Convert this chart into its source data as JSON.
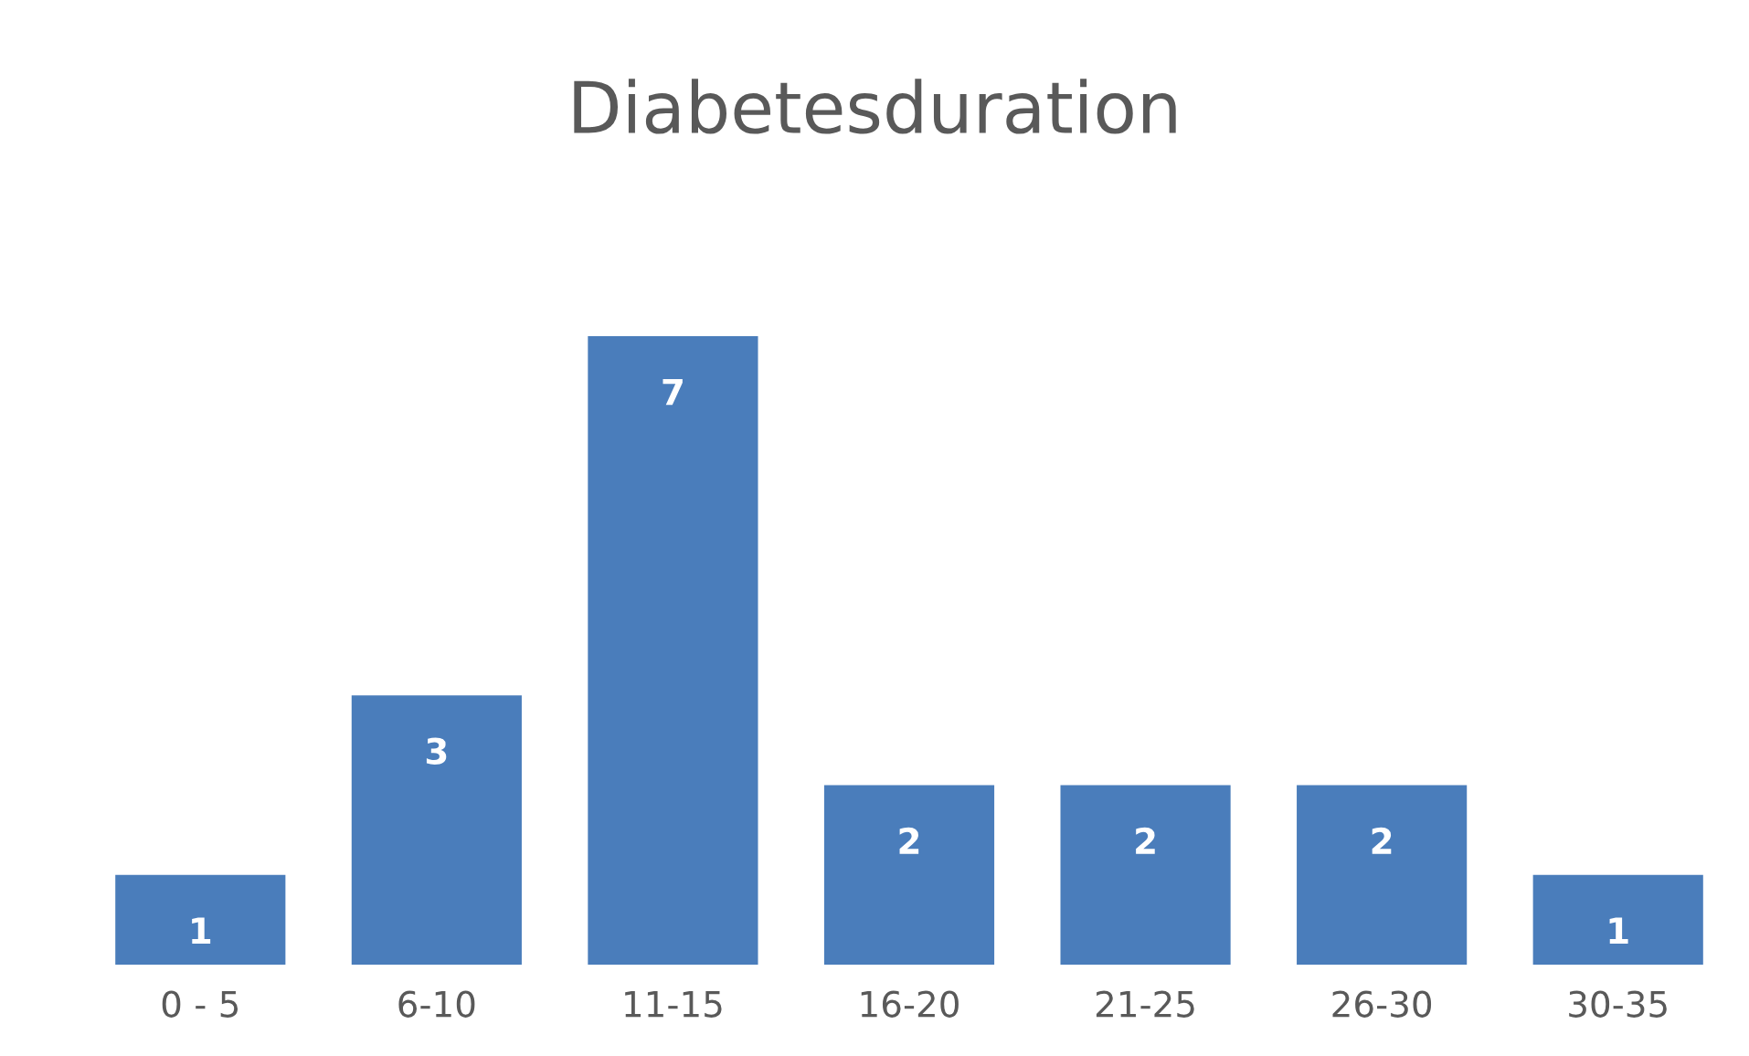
{
  "chart_data": {
    "type": "bar",
    "title": "Diabetesduration",
    "categories": [
      "0 - 5",
      "6-10",
      "11-15",
      "16-20",
      "21-25",
      "26-30",
      "30-35"
    ],
    "values": [
      1,
      3,
      7,
      2,
      2,
      2,
      1
    ],
    "color": "#4a7dbb",
    "data_labels": true,
    "grid": false,
    "legend": false
  }
}
